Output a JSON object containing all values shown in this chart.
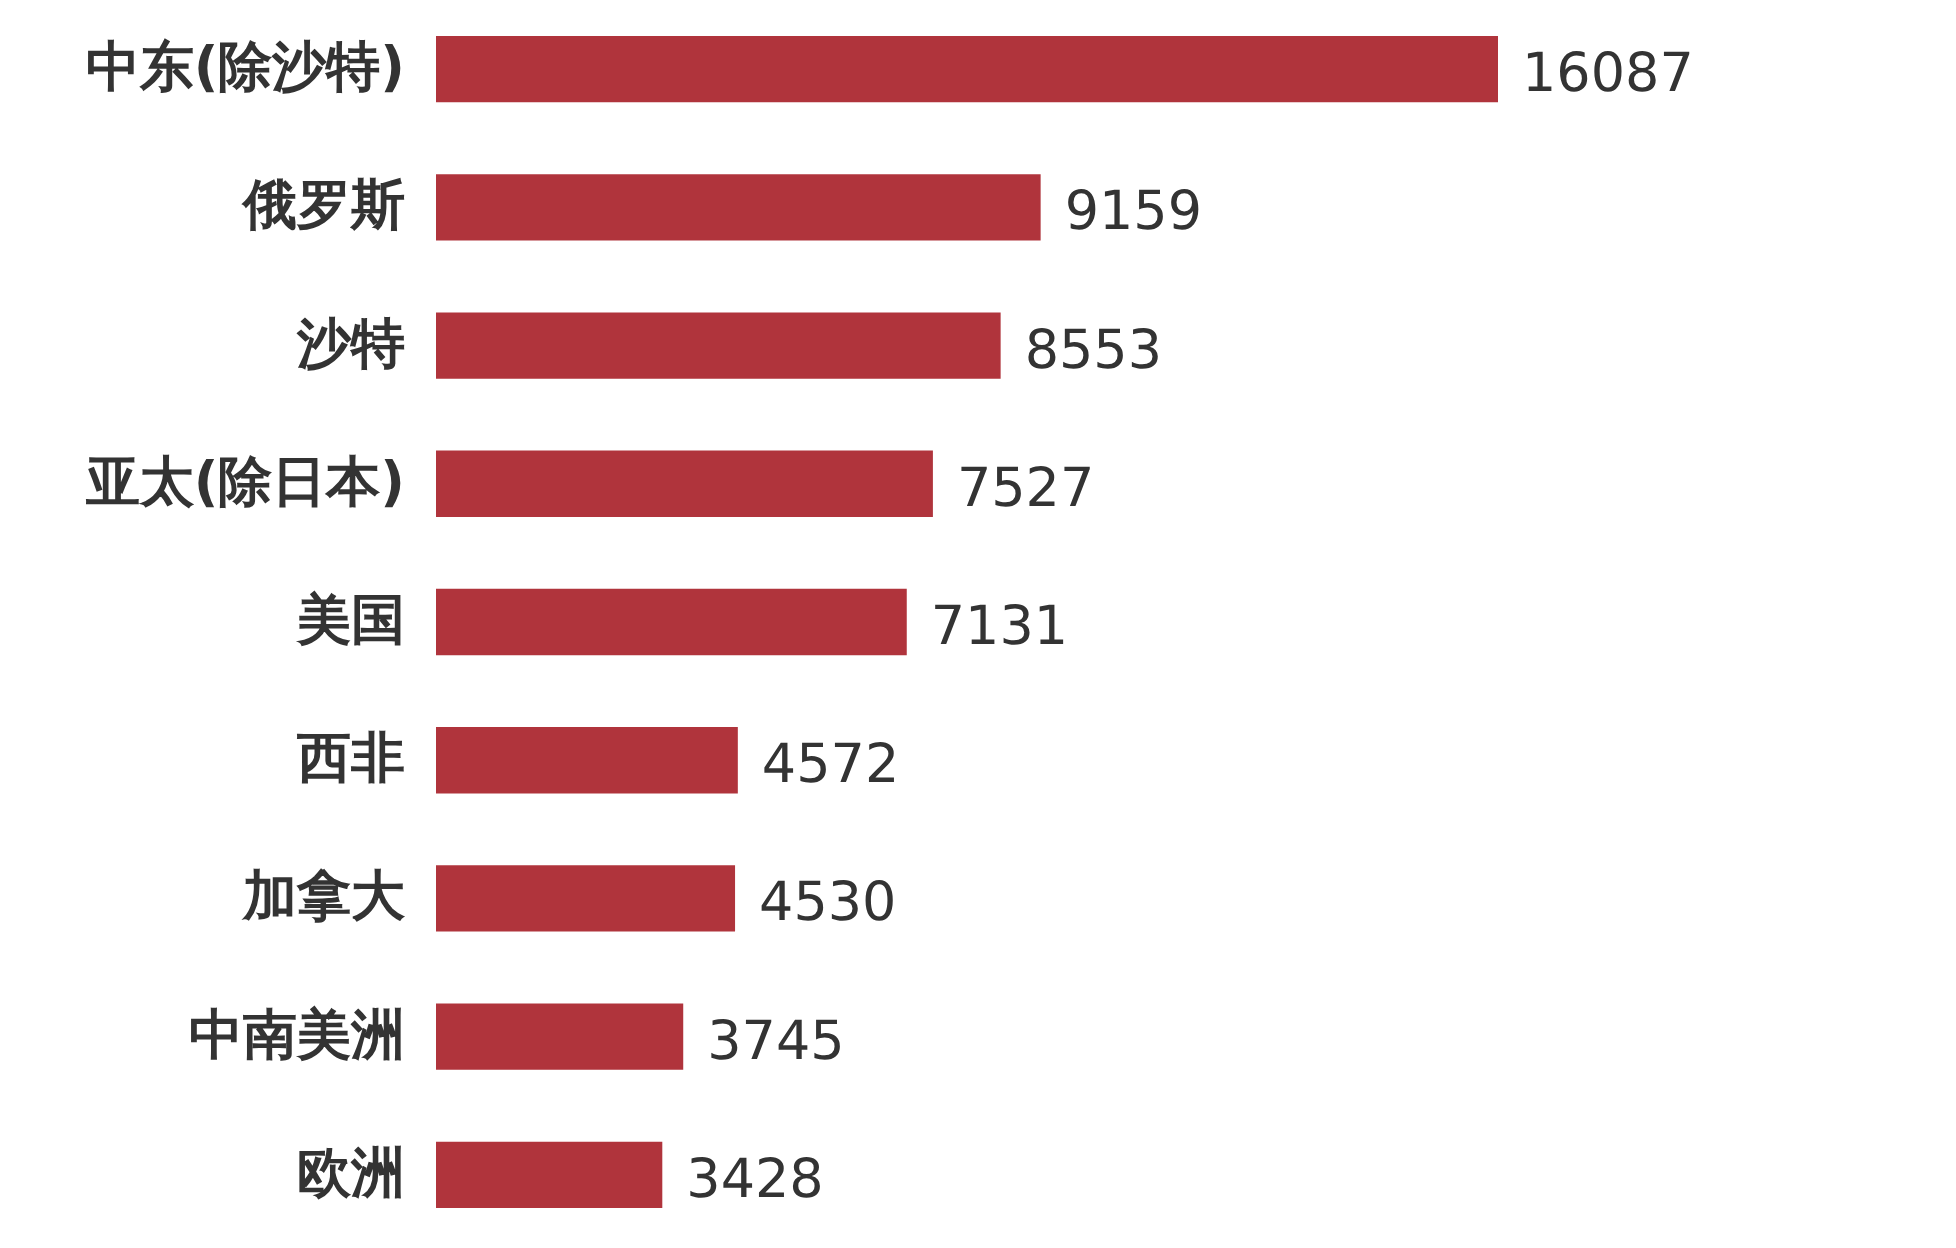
{
  "chart_data": {
    "type": "bar",
    "orientation": "horizontal",
    "categories": [
      "中东(除沙特)",
      "俄罗斯",
      "沙特",
      "亚太(除日本)",
      "美国",
      "西非",
      "加拿大",
      "中南美洲",
      "欧洲"
    ],
    "values": [
      16087,
      9159,
      8553,
      7527,
      7131,
      4572,
      4530,
      3745,
      3428
    ],
    "color": "#b0343c",
    "data_labels": true
  }
}
